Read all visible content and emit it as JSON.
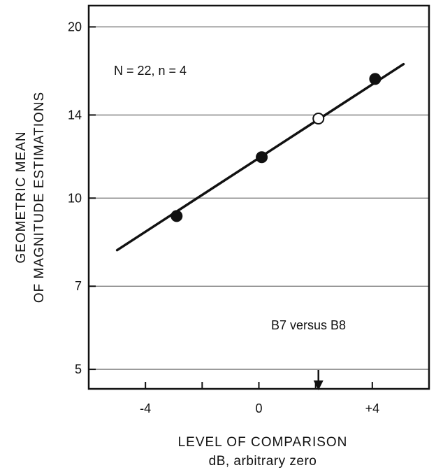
{
  "chart_data": {
    "type": "scatter",
    "xlabel": "LEVEL OF COMPARISON",
    "xlabel_sub": "dB, arbitrary zero",
    "ylabel": "GEOMETRIC MEAN",
    "ylabel_line2": "OF MAGNITUDE ESTIMATIONS",
    "y_scale": "log",
    "xlim": [
      -6.0,
      6.0
    ],
    "ylim": [
      4.62,
      21.8
    ],
    "x_ticks": [
      -6,
      -4,
      -2,
      0,
      2,
      4
    ],
    "x_tick_labels": [
      {
        "value": -4,
        "label": "-4"
      },
      {
        "value": 0,
        "label": "0"
      },
      {
        "value": 4,
        "label": "+4"
      }
    ],
    "y_ticks": [
      5,
      7,
      10,
      14,
      20
    ],
    "y_tick_labels": [
      "5",
      "7",
      "10",
      "14",
      "20"
    ],
    "grid": "horizontal",
    "annotations": [
      "N = 22,  n = 4",
      "B7 versus B8"
    ],
    "series": [
      {
        "marker": "filled-circle",
        "color": "#111111",
        "x": [
          -2.9,
          0.1,
          4.1
        ],
        "y": [
          9.3,
          11.8,
          16.2
        ]
      },
      {
        "marker": "open-circle",
        "color": "#111111",
        "x": [
          2.1
        ],
        "y": [
          13.8
        ]
      }
    ],
    "fit_line": {
      "x": [
        -5.0,
        5.1
      ],
      "y": [
        8.1,
        17.2
      ]
    },
    "arrow_marker": {
      "x": 2.1,
      "direction": "down"
    }
  }
}
